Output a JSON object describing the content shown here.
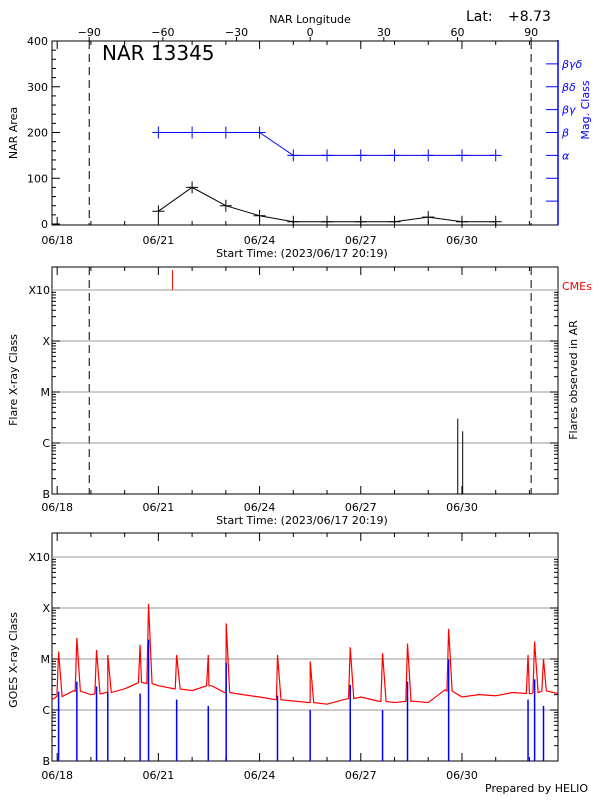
{
  "header": {
    "lat_label": "Lat:",
    "lat_value": "+8.73",
    "region_title": "NAR 13345",
    "footer": "Prepared by HELIO"
  },
  "colors": {
    "area": "#000000",
    "mag_class": "#0000ff",
    "cme": "#ff0000",
    "goes_long": "#ff0000",
    "goes_short": "#0000ff",
    "grid": "#999999"
  },
  "chart_data": [
    {
      "type": "line",
      "panel": "nar",
      "xlabel": "Start Time: (2023/06/17 20:19)",
      "x_range": [
        "2023-06-17T20:19:00Z",
        "2023-07-02T20:19:00Z"
      ],
      "x_ticks": [
        "06/18",
        "06/21",
        "06/24",
        "06/27",
        "06/30"
      ],
      "top_axis": {
        "label": "NAR Longitude",
        "ticks": [
          -90,
          -60,
          -30,
          0,
          30,
          60,
          90
        ],
        "lon_zero_time": "2023-06-25T12:00:00Z",
        "limb_lines_at": [
          -90,
          90
        ]
      },
      "ylabel": "NAR Area",
      "ylim": [
        0,
        400
      ],
      "y_ticks": [
        0,
        100,
        200,
        300,
        400
      ],
      "y2label": "Mag. Class",
      "y2_ticks": [
        {
          "label": "",
          "value": 50
        },
        {
          "label": "",
          "value": 100
        },
        {
          "label": "α",
          "value": 150
        },
        {
          "label": "β",
          "value": 200
        },
        {
          "label": "βγ",
          "value": 250
        },
        {
          "label": "βδ",
          "value": 300
        },
        {
          "label": "βγδ",
          "value": 350
        }
      ],
      "dates": [
        "2023-06-21",
        "2023-06-22",
        "2023-06-23",
        "2023-06-24",
        "2023-06-25",
        "2023-06-26",
        "2023-06-27",
        "2023-06-28",
        "2023-06-29",
        "2023-06-30",
        "2023-07-01"
      ],
      "series": [
        {
          "key": "area",
          "values": [
            28,
            80,
            40,
            18,
            5,
            5,
            5,
            5,
            15,
            5,
            5
          ]
        },
        {
          "key": "mag_class",
          "values": [
            "β",
            "β",
            "β",
            "β",
            "α",
            "α",
            "α",
            "α",
            "α",
            "α",
            "α"
          ]
        }
      ]
    },
    {
      "type": "bar",
      "panel": "flares",
      "xlabel": "Start Time: (2023/06/17 20:19)",
      "x_ticks": [
        "06/18",
        "06/21",
        "06/24",
        "06/27",
        "06/30"
      ],
      "ylabel": "Flare X-ray Class",
      "y2label": "Flares observed in AR",
      "y_scale": "log",
      "y_ticks": [
        {
          "label": "B",
          "flux": 1e-07
        },
        {
          "label": "C",
          "flux": 1e-06
        },
        {
          "label": "M",
          "flux": 1e-05
        },
        {
          "label": "X",
          "flux": 0.0001
        },
        {
          "label": "X10",
          "flux": 0.001
        }
      ],
      "grid": true,
      "flares": [
        {
          "time": "2023-06-29T21:00:00Z",
          "flux": 3e-06
        },
        {
          "time": "2023-06-30T00:30:00Z",
          "flux": 1.7e-06
        }
      ],
      "cme_label": "CMEs",
      "cmes": [
        {
          "time": "2023-06-21T10:00:00Z"
        }
      ]
    },
    {
      "type": "line",
      "panel": "goes",
      "x_ticks": [
        "06/18",
        "06/21",
        "06/24",
        "06/27",
        "06/30"
      ],
      "ylabel": "GOES X-ray Class",
      "y_scale": "log",
      "y_ticks": [
        {
          "label": "B",
          "flux": 1e-07
        },
        {
          "label": "C",
          "flux": 1e-06
        },
        {
          "label": "M",
          "flux": 1e-05
        },
        {
          "label": "X",
          "flux": 0.0001
        },
        {
          "label": "X10",
          "flux": 0.001
        }
      ],
      "grid": true,
      "long_baseline": [
        [
          "2023-06-17T20:19:00Z",
          1.6e-06
        ],
        [
          "2023-06-18T12:00:00Z",
          2.4e-06
        ],
        [
          "2023-06-19T00:00:00Z",
          2e-06
        ],
        [
          "2023-06-19T12:00:00Z",
          2.2e-06
        ],
        [
          "2023-06-20T00:00:00Z",
          2.6e-06
        ],
        [
          "2023-06-20T12:00:00Z",
          3.5e-06
        ],
        [
          "2023-06-21T00:00:00Z",
          3e-06
        ],
        [
          "2023-06-21T12:00:00Z",
          2.6e-06
        ],
        [
          "2023-06-22T00:00:00Z",
          2.4e-06
        ],
        [
          "2023-06-22T12:00:00Z",
          3e-06
        ],
        [
          "2023-06-23T00:00:00Z",
          2.2e-06
        ],
        [
          "2023-06-23T12:00:00Z",
          2e-06
        ],
        [
          "2023-06-24T00:00:00Z",
          1.8e-06
        ],
        [
          "2023-06-24T12:00:00Z",
          1.6e-06
        ],
        [
          "2023-06-25T00:00:00Z",
          1.5e-06
        ],
        [
          "2023-06-25T12:00:00Z",
          1.4e-06
        ],
        [
          "2023-06-26T00:00:00Z",
          1.3e-06
        ],
        [
          "2023-06-26T12:00:00Z",
          1.6e-06
        ],
        [
          "2023-06-27T00:00:00Z",
          1.8e-06
        ],
        [
          "2023-06-27T12:00:00Z",
          1.5e-06
        ],
        [
          "2023-06-28T00:00:00Z",
          1.4e-06
        ],
        [
          "2023-06-28T12:00:00Z",
          1.5e-06
        ],
        [
          "2023-06-29T00:00:00Z",
          1.4e-06
        ],
        [
          "2023-06-29T12:00:00Z",
          2.5e-06
        ],
        [
          "2023-06-30T00:00:00Z",
          1.8e-06
        ],
        [
          "2023-06-30T12:00:00Z",
          2e-06
        ],
        [
          "2023-07-01T00:00:00Z",
          1.9e-06
        ],
        [
          "2023-07-01T12:00:00Z",
          2.2e-06
        ],
        [
          "2023-07-02T00:00:00Z",
          2.1e-06
        ],
        [
          "2023-07-02T12:00:00Z",
          2.4e-06
        ],
        [
          "2023-07-02T20:19:00Z",
          2.1e-06
        ]
      ],
      "peaks": [
        {
          "time": "2023-06-18T01:00:00Z",
          "long": 1.4e-05,
          "short": 2.3e-06
        },
        {
          "time": "2023-06-18T14:00:00Z",
          "long": 2.6e-05,
          "short": 3.6e-06
        },
        {
          "time": "2023-06-19T04:00:00Z",
          "long": 1.5e-05,
          "short": 2.9e-06
        },
        {
          "time": "2023-06-19T12:00:00Z",
          "long": 1.2e-05,
          "short": 2.3e-06
        },
        {
          "time": "2023-06-20T11:00:00Z",
          "long": 1.9e-05,
          "short": 2.1e-06
        },
        {
          "time": "2023-06-20T17:00:00Z",
          "long": 0.00012,
          "short": 2.4e-05
        },
        {
          "time": "2023-06-21T13:00:00Z",
          "long": 1.2e-05,
          "short": 1.6e-06
        },
        {
          "time": "2023-06-22T11:30:00Z",
          "long": 1.2e-05,
          "short": 1.2e-06
        },
        {
          "time": "2023-06-23T00:15:00Z",
          "long": 5e-05,
          "short": 8.4e-06
        },
        {
          "time": "2023-06-24T12:45:00Z",
          "long": 1.2e-05,
          "short": 1.9e-06
        },
        {
          "time": "2023-06-25T12:00:00Z",
          "long": 9e-06,
          "short": 1e-06
        },
        {
          "time": "2023-06-26T16:30:00Z",
          "long": 1.7e-05,
          "short": 3.1e-06
        },
        {
          "time": "2023-06-27T15:30:00Z",
          "long": 1.3e-05,
          "short": 1e-06
        },
        {
          "time": "2023-06-28T09:15:00Z",
          "long": 2e-05,
          "short": 3.6e-06
        },
        {
          "time": "2023-06-29T14:30:00Z",
          "long": 3.9e-05,
          "short": 9.7e-06
        },
        {
          "time": "2023-07-01T23:00:00Z",
          "long": 1.2e-05,
          "short": 1.6e-06
        },
        {
          "time": "2023-07-02T03:40:00Z",
          "long": 2.2e-05,
          "short": 4e-06
        },
        {
          "time": "2023-07-02T10:00:00Z",
          "long": 1e-05,
          "short": 1.2e-06
        }
      ]
    }
  ]
}
